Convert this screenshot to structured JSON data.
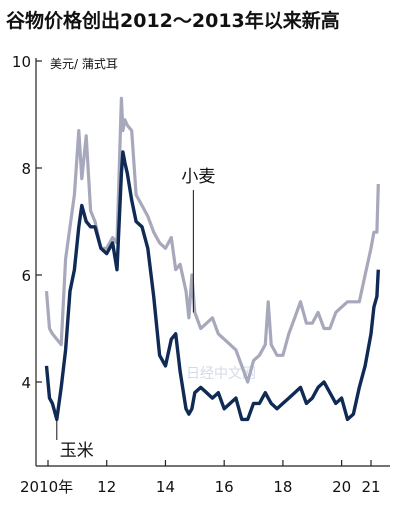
{
  "chart_data": {
    "type": "line",
    "title": "谷物价格创出2012～2013年以来新高",
    "ylabel": "美元/ 蒲式耳",
    "xlabel": "",
    "xlim": [
      2010.0,
      2021.3
    ],
    "ylim": [
      3.0,
      10.0
    ],
    "y_ticks": [
      {
        "value": 4,
        "label": "4"
      },
      {
        "value": 6,
        "label": "6"
      },
      {
        "value": 8,
        "label": "8"
      },
      {
        "value": 10,
        "label": "10"
      }
    ],
    "x_ticks": [
      {
        "value": 2010,
        "label": "2010年"
      },
      {
        "value": 2012,
        "label": "12"
      },
      {
        "value": 2014,
        "label": "14"
      },
      {
        "value": 2016,
        "label": "16"
      },
      {
        "value": 2018,
        "label": "18"
      },
      {
        "value": 2020,
        "label": "20"
      },
      {
        "value": 2021,
        "label": "21"
      }
    ],
    "grid": false,
    "legend": "none",
    "series": [
      {
        "name": "小麦",
        "color": "#a7a8bc",
        "x": [
          2009.95,
          2010.05,
          2010.15,
          2010.3,
          2010.45,
          2010.6,
          2010.75,
          2010.9,
          2011.05,
          2011.15,
          2011.3,
          2011.45,
          2011.6,
          2011.8,
          2012.0,
          2012.2,
          2012.35,
          2012.5,
          2012.55,
          2012.62,
          2012.7,
          2012.85,
          2013.0,
          2013.2,
          2013.4,
          2013.6,
          2013.8,
          2014.0,
          2014.2,
          2014.35,
          2014.5,
          2014.7,
          2014.8,
          2014.9,
          2015.0,
          2015.2,
          2015.4,
          2015.6,
          2015.8,
          2016.0,
          2016.2,
          2016.4,
          2016.6,
          2016.8,
          2017.0,
          2017.2,
          2017.4,
          2017.5,
          2017.6,
          2017.8,
          2018.0,
          2018.2,
          2018.4,
          2018.6,
          2018.8,
          2019.0,
          2019.2,
          2019.4,
          2019.6,
          2019.8,
          2020.0,
          2020.2,
          2020.4,
          2020.6,
          2020.8,
          2021.0,
          2021.1,
          2021.2,
          2021.25
        ],
        "y": [
          5.7,
          5.0,
          4.9,
          4.8,
          4.7,
          6.3,
          6.9,
          7.5,
          8.7,
          7.8,
          8.6,
          7.2,
          7.0,
          6.5,
          6.5,
          6.7,
          6.6,
          9.3,
          8.7,
          8.9,
          8.8,
          8.7,
          7.5,
          7.3,
          7.1,
          6.8,
          6.6,
          6.5,
          6.7,
          6.1,
          6.2,
          5.7,
          5.2,
          6.0,
          5.3,
          5.0,
          5.1,
          5.2,
          4.9,
          4.8,
          4.7,
          4.6,
          4.3,
          4.0,
          4.4,
          4.5,
          4.7,
          5.5,
          4.7,
          4.5,
          4.5,
          4.9,
          5.2,
          5.5,
          5.1,
          5.1,
          5.3,
          5.0,
          5.0,
          5.3,
          5.4,
          5.5,
          5.5,
          5.5,
          6.0,
          6.5,
          6.8,
          6.8,
          7.7
        ]
      },
      {
        "name": "玉米",
        "color": "#0f2a55",
        "x": [
          2009.95,
          2010.05,
          2010.15,
          2010.3,
          2010.45,
          2010.6,
          2010.75,
          2010.9,
          2011.05,
          2011.15,
          2011.3,
          2011.45,
          2011.6,
          2011.8,
          2012.0,
          2012.2,
          2012.35,
          2012.5,
          2012.55,
          2012.62,
          2012.7,
          2012.85,
          2013.0,
          2013.2,
          2013.4,
          2013.6,
          2013.8,
          2014.0,
          2014.2,
          2014.35,
          2014.5,
          2014.7,
          2014.8,
          2014.9,
          2015.0,
          2015.2,
          2015.4,
          2015.6,
          2015.8,
          2016.0,
          2016.2,
          2016.4,
          2016.6,
          2016.8,
          2017.0,
          2017.2,
          2017.4,
          2017.5,
          2017.6,
          2017.8,
          2018.0,
          2018.2,
          2018.4,
          2018.6,
          2018.8,
          2019.0,
          2019.2,
          2019.4,
          2019.6,
          2019.8,
          2020.0,
          2020.2,
          2020.4,
          2020.6,
          2020.8,
          2021.0,
          2021.1,
          2021.2,
          2021.25
        ],
        "y": [
          4.3,
          3.7,
          3.6,
          3.3,
          3.9,
          4.6,
          5.7,
          6.1,
          6.9,
          7.3,
          7.0,
          6.9,
          6.9,
          6.5,
          6.4,
          6.6,
          6.1,
          7.9,
          8.3,
          8.1,
          7.9,
          7.4,
          7.0,
          6.9,
          6.5,
          5.6,
          4.5,
          4.3,
          4.8,
          4.9,
          4.2,
          3.5,
          3.4,
          3.5,
          3.8,
          3.9,
          3.8,
          3.7,
          3.8,
          3.5,
          3.6,
          3.7,
          3.3,
          3.3,
          3.6,
          3.6,
          3.8,
          3.7,
          3.6,
          3.5,
          3.6,
          3.7,
          3.8,
          3.9,
          3.6,
          3.7,
          3.9,
          4.0,
          3.8,
          3.6,
          3.7,
          3.3,
          3.4,
          3.9,
          4.3,
          4.9,
          5.4,
          5.6,
          6.1
        ]
      }
    ],
    "annotations": [
      {
        "text": "小麦",
        "series": 0,
        "at_x": 2014.95
      },
      {
        "text": "玉米",
        "series": 1,
        "at_x": 2010.3
      }
    ],
    "watermark": "日经中文网"
  }
}
